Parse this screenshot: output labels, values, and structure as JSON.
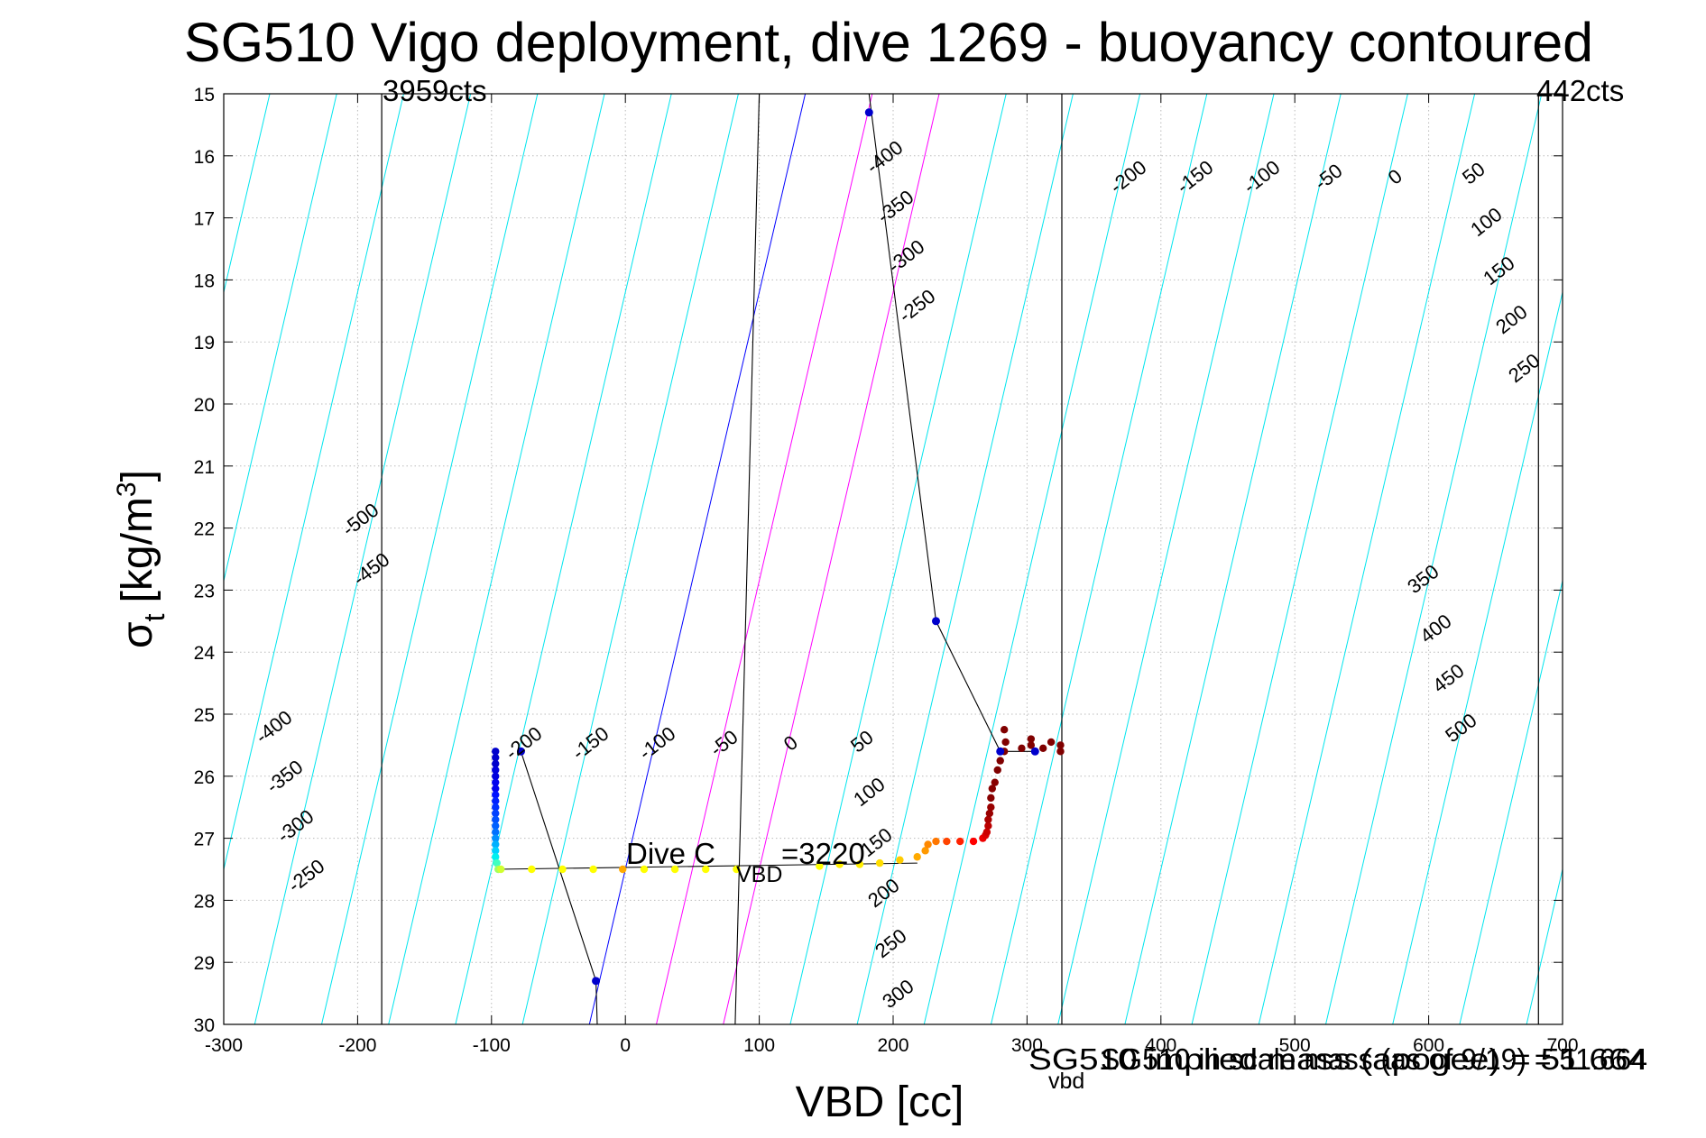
{
  "chart_data": {
    "type": "scatter",
    "title": "SG510 Vigo deployment, dive 1269 - buoyancy contoured",
    "xlabel": "VBD [cc]",
    "ylabel": "σ_t [kg/m^3]",
    "ylabel_main": "σ",
    "ylabel_sub": "t",
    "ylabel_rest": "[kg/m",
    "ylabel_sup": "3",
    "ylabel_close": "]",
    "xlim": [
      -300,
      700
    ],
    "ylim": [
      15,
      30
    ],
    "y_reversed": true,
    "xticks": [
      -300,
      -200,
      -100,
      0,
      100,
      200,
      300,
      400,
      500,
      600,
      700
    ],
    "yticks": [
      15,
      16,
      17,
      18,
      19,
      20,
      21,
      22,
      23,
      24,
      25,
      26,
      27,
      28,
      29,
      30
    ],
    "grid": true,
    "colors": {
      "contour_negative": "#00e5ee",
      "contour_zero": "#0000ff",
      "contour_positive": "#ff00ff",
      "limit_lines": "#000000",
      "grid": "#bbbbbb"
    },
    "vertical_limits": [
      {
        "x": -182,
        "label": "3959cts"
      },
      {
        "x": 682,
        "label": "442cts"
      },
      {
        "x": 326,
        "label": ""
      }
    ],
    "contour_spacing": 50,
    "contour_slope_cc_per_sigma": 10.75,
    "zero_contour_anchor": {
      "x": 0,
      "y": 27.5
    },
    "contour_labels_upper": [
      "-200",
      "-150",
      "-100",
      "-50",
      "0",
      "50",
      "100",
      "150",
      "200",
      "250"
    ],
    "contour_labels_upper_near_line": [
      "-400",
      "-350",
      "-300",
      "-250"
    ],
    "contour_labels_right": [
      "350",
      "400",
      "450",
      "500"
    ],
    "contour_labels_left": [
      "-500",
      "-450"
    ],
    "contour_labels_lower_left": [
      "-400",
      "-350",
      "-300",
      "-250"
    ],
    "contour_labels_middle": [
      "-200",
      "-150",
      "-100",
      "-50",
      "0",
      "50",
      "100",
      "150",
      "200",
      "250",
      "300"
    ],
    "profile_points": [
      {
        "x": -97,
        "y": 25.6,
        "c": "#0000cc"
      },
      {
        "x": -97,
        "y": 25.7,
        "c": "#0000cc"
      },
      {
        "x": -97,
        "y": 25.8,
        "c": "#0000cc"
      },
      {
        "x": -97,
        "y": 25.9,
        "c": "#0000dd"
      },
      {
        "x": -97,
        "y": 26.0,
        "c": "#0000dd"
      },
      {
        "x": -97,
        "y": 26.1,
        "c": "#0000ee"
      },
      {
        "x": -97,
        "y": 26.2,
        "c": "#0000ee"
      },
      {
        "x": -97,
        "y": 26.3,
        "c": "#0010ff"
      },
      {
        "x": -97,
        "y": 26.4,
        "c": "#0020ff"
      },
      {
        "x": -97,
        "y": 26.5,
        "c": "#0030ff"
      },
      {
        "x": -97,
        "y": 26.6,
        "c": "#0040ff"
      },
      {
        "x": -97,
        "y": 26.7,
        "c": "#0050ff"
      },
      {
        "x": -97,
        "y": 26.8,
        "c": "#0060ff"
      },
      {
        "x": -97,
        "y": 26.9,
        "c": "#0070ff"
      },
      {
        "x": -97,
        "y": 27.0,
        "c": "#0090ff"
      },
      {
        "x": -97,
        "y": 27.1,
        "c": "#00b0ff"
      },
      {
        "x": -97,
        "y": 27.2,
        "c": "#00d0ff"
      },
      {
        "x": -97,
        "y": 27.3,
        "c": "#00f0f0"
      },
      {
        "x": -96,
        "y": 27.4,
        "c": "#40ffc0"
      },
      {
        "x": -95,
        "y": 27.5,
        "c": "#a0ff60"
      },
      {
        "x": -93,
        "y": 27.5,
        "c": "#d0ff30"
      },
      {
        "x": -70,
        "y": 27.5,
        "c": "#ffff00"
      },
      {
        "x": -47,
        "y": 27.5,
        "c": "#ffff00"
      },
      {
        "x": -24,
        "y": 27.5,
        "c": "#ffff00"
      },
      {
        "x": -2,
        "y": 27.5,
        "c": "#ffaa00"
      },
      {
        "x": 14,
        "y": 27.5,
        "c": "#ffff00"
      },
      {
        "x": 37,
        "y": 27.5,
        "c": "#ffff00"
      },
      {
        "x": 60,
        "y": 27.5,
        "c": "#ffff00"
      },
      {
        "x": 83,
        "y": 27.5,
        "c": "#ffff00"
      },
      {
        "x": 145,
        "y": 27.45,
        "c": "#ffff00"
      },
      {
        "x": 160,
        "y": 27.42,
        "c": "#ffee00"
      },
      {
        "x": 175,
        "y": 27.42,
        "c": "#ffee00"
      },
      {
        "x": 190,
        "y": 27.4,
        "c": "#ffdd00"
      },
      {
        "x": 205,
        "y": 27.35,
        "c": "#ffcc00"
      },
      {
        "x": 218,
        "y": 27.3,
        "c": "#ffaa00"
      },
      {
        "x": 224,
        "y": 27.2,
        "c": "#ff9900"
      },
      {
        "x": 226,
        "y": 27.1,
        "c": "#ff8800"
      },
      {
        "x": 232,
        "y": 27.05,
        "c": "#ff7700"
      },
      {
        "x": 240,
        "y": 27.05,
        "c": "#ff4400"
      },
      {
        "x": 250,
        "y": 27.05,
        "c": "#ff2200"
      },
      {
        "x": 260,
        "y": 27.05,
        "c": "#ff0000"
      },
      {
        "x": 267,
        "y": 27.0,
        "c": "#ee0000"
      },
      {
        "x": 269,
        "y": 26.95,
        "c": "#dd0000"
      },
      {
        "x": 270,
        "y": 26.9,
        "c": "#cc0000"
      },
      {
        "x": 271,
        "y": 26.8,
        "c": "#bb0000"
      },
      {
        "x": 271,
        "y": 26.7,
        "c": "#aa0000"
      },
      {
        "x": 272,
        "y": 26.6,
        "c": "#990000"
      },
      {
        "x": 273,
        "y": 26.5,
        "c": "#990000"
      },
      {
        "x": 273,
        "y": 26.35,
        "c": "#880000"
      },
      {
        "x": 274,
        "y": 26.2,
        "c": "#880000"
      },
      {
        "x": 276,
        "y": 26.1,
        "c": "#880000"
      },
      {
        "x": 278,
        "y": 25.9,
        "c": "#800000"
      },
      {
        "x": 280,
        "y": 25.75,
        "c": "#800000"
      },
      {
        "x": 283,
        "y": 25.6,
        "c": "#800000"
      },
      {
        "x": 284,
        "y": 25.45,
        "c": "#800000"
      },
      {
        "x": 283,
        "y": 25.25,
        "c": "#800000"
      },
      {
        "x": 296,
        "y": 25.55,
        "c": "#800000"
      },
      {
        "x": 303,
        "y": 25.4,
        "c": "#800000"
      },
      {
        "x": 312,
        "y": 25.55,
        "c": "#800000"
      },
      {
        "x": 318,
        "y": 25.45,
        "c": "#800000"
      },
      {
        "x": 325,
        "y": 25.5,
        "c": "#800000"
      },
      {
        "x": 325,
        "y": 25.6,
        "c": "#800000"
      },
      {
        "x": 303,
        "y": 25.5,
        "c": "#800000"
      }
    ],
    "blue_markers": [
      {
        "x": 182,
        "y": 15.3
      },
      {
        "x": 232,
        "y": 23.5
      },
      {
        "x": 280,
        "y": 25.6
      },
      {
        "x": 306,
        "y": 25.6
      },
      {
        "x": -78,
        "y": 25.6
      },
      {
        "x": -22,
        "y": 29.3
      }
    ],
    "reference_lines": [
      [
        {
          "x": 182,
          "y": 15.0
        },
        {
          "x": 232,
          "y": 23.5
        },
        {
          "x": 280,
          "y": 25.6
        },
        {
          "x": 306,
          "y": 25.6
        }
      ],
      [
        {
          "x": -78,
          "y": 25.6
        },
        {
          "x": -22,
          "y": 29.3
        },
        {
          "x": -21,
          "y": 30.0
        }
      ],
      [
        {
          "x": 100,
          "y": 15.0
        },
        {
          "x": 82,
          "y": 30.0
        }
      ]
    ],
    "connector_line": [
      {
        "x": -95,
        "y": 27.5
      },
      {
        "x": 218,
        "y": 27.4
      }
    ],
    "annotations": {
      "dive_c_main": "Dive C",
      "dive_c_sub": "VBD",
      "dive_c_value": "=3220",
      "bottom_right_1": "SG510 implied mass (apogee) = 51.664",
      "bottom_right_2_main": "SG510 in scale mass (as of 9/19) = 51.664",
      "bottom_right_sub": "vbd",
      "bottom_right_overlap": "SG510 implied mass (apogee) =51.664 kg"
    }
  }
}
